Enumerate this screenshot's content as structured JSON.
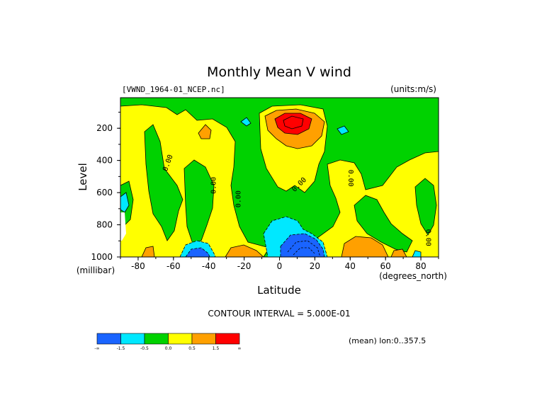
{
  "chart_data": {
    "type": "heatmap",
    "title": "Monthly Mean V wind",
    "file_label": "[VWND_1964-01_NCEP.nc]",
    "units_label": "(units:m/s)",
    "xlabel": "Latitude",
    "ylabel": "Level",
    "x_unit": "(degrees_north)",
    "y_unit": "(millibar)",
    "xlim": [
      -90,
      90
    ],
    "ylim": [
      1000,
      10
    ],
    "x_ticks": [
      -80,
      -60,
      -40,
      -20,
      0,
      20,
      40,
      60,
      80
    ],
    "y_ticks": [
      200,
      400,
      600,
      800,
      1000
    ],
    "contour_interval_label": "CONTOUR INTERVAL = 5.000E-01",
    "mean_label": "(mean) lon:0..357.5",
    "contour_labels": [
      {
        "text": "0.00",
        "lat": -62,
        "lev": 420,
        "angle": -70
      },
      {
        "text": "0.00",
        "lat": -36,
        "lev": 555,
        "angle": -90
      },
      {
        "text": "0.00",
        "lat": -22,
        "lev": 640,
        "angle": -90
      },
      {
        "text": "0.00",
        "lat": 12,
        "lev": 560,
        "angle": -45
      },
      {
        "text": "0.00",
        "lat": 39,
        "lev": 510,
        "angle": 90
      },
      {
        "text": "0.00",
        "lat": 83,
        "lev": 880,
        "angle": 90
      }
    ],
    "legend": {
      "colors": [
        "#1a64ff",
        "#00e8ff",
        "#00d200",
        "#ffff00",
        "#ffa000",
        "#ff0000"
      ],
      "labels": [
        "-∞",
        "-1.5",
        "-0.5",
        "0.0",
        "0.5",
        "1.5",
        "∞"
      ]
    },
    "regions": [
      {
        "name": "northern-jet-core",
        "color": "#ff0000",
        "lat": [
          6,
          16
        ],
        "lev": [
          130,
          200
        ]
      },
      {
        "name": "surface-low-core",
        "color": "#1a64ff",
        "lat": [
          2,
          22
        ],
        "lev": [
          840,
          1000
        ]
      },
      {
        "name": "southern-surface-low",
        "color": "#1a64ff",
        "lat": [
          -54,
          -38
        ],
        "lev": [
          930,
          1000
        ]
      }
    ]
  }
}
